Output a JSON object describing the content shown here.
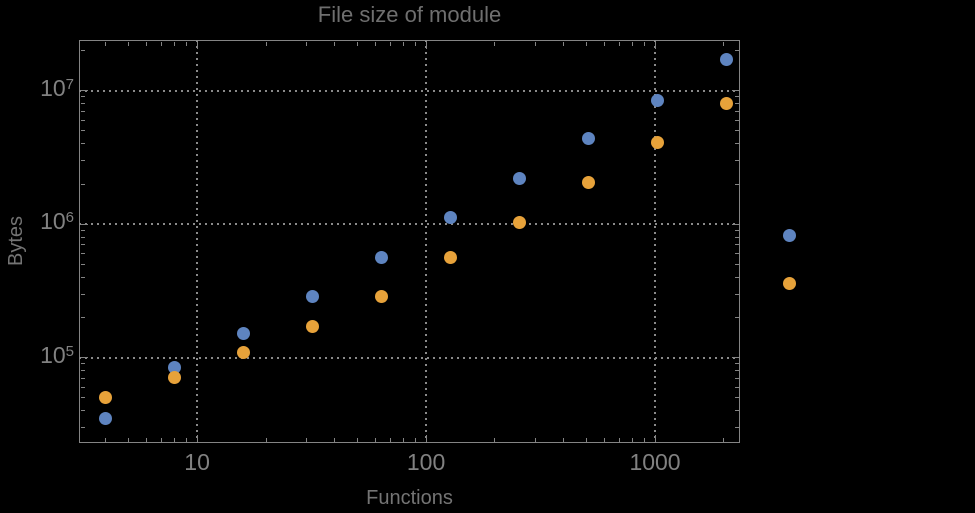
{
  "chart_data": {
    "type": "scatter",
    "title": "File size of module",
    "xlabel": "Functions",
    "ylabel": "Bytes",
    "x_scale": "log",
    "y_scale": "log",
    "xlim": [
      3.05,
      2350
    ],
    "ylim": [
      23000,
      24000000
    ],
    "grid": "dotted-at-decades",
    "x_major_ticks": [
      {
        "value": 10,
        "label": "10"
      },
      {
        "value": 100,
        "label": "100"
      },
      {
        "value": 1000,
        "label": "1000"
      }
    ],
    "y_major_ticks": [
      {
        "value": 100000,
        "label_base": "10",
        "label_exp": "5"
      },
      {
        "value": 1000000,
        "label_base": "10",
        "label_exp": "6"
      },
      {
        "value": 10000000,
        "label_base": "10",
        "label_exp": "7"
      }
    ],
    "x": [
      4,
      8,
      16,
      32,
      64,
      128,
      256,
      512,
      1024,
      2048
    ],
    "series": [
      {
        "name": "blue-series",
        "marker_color": "#5e84c0",
        "values": [
          35000,
          85000,
          153000,
          290000,
          560000,
          1120000,
          2200000,
          4400000,
          8500000,
          17000000
        ]
      },
      {
        "name": "orange-series",
        "marker_color": "#e7a23a",
        "values": [
          50000,
          71000,
          109000,
          173000,
          290000,
          560000,
          1030000,
          2040000,
          4100000,
          8000000
        ]
      }
    ],
    "legend": {
      "position": "right-of-plot",
      "labels_visible": false,
      "entries": [
        {
          "series": "blue-series",
          "marker_color": "#5e84c0"
        },
        {
          "series": "orange-series",
          "marker_color": "#e7a23a"
        }
      ]
    }
  },
  "colors": {
    "background": "#000000",
    "frame": "#848484",
    "grid": "#8a8a8a",
    "title_text": "#6f6f6f",
    "axis_label_text": "#747474",
    "tick_label_text": "#818181"
  }
}
